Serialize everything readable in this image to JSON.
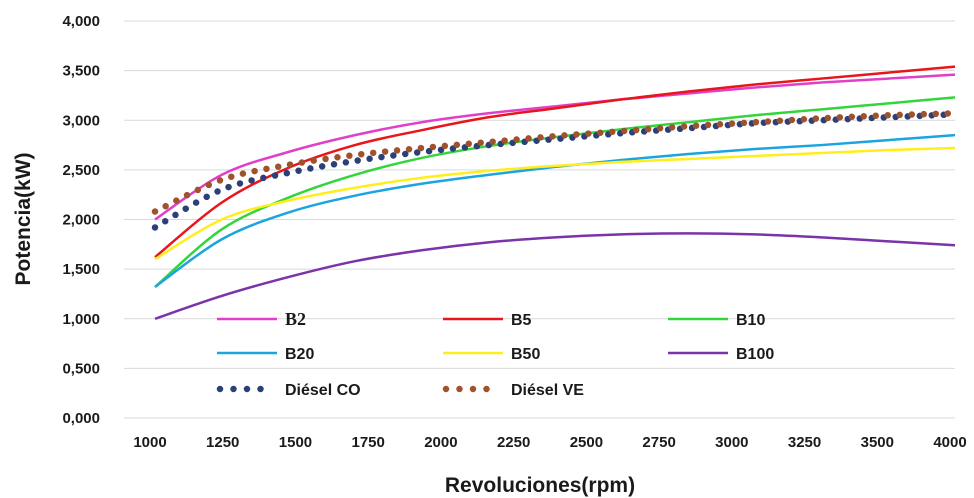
{
  "chart_data": {
    "type": "line",
    "xlabel": "Revoluciones(rpm)",
    "ylabel": "Potencia(kW)",
    "xlim": [
      1000,
      4000
    ],
    "ylim": [
      0,
      4
    ],
    "x_ticks": [
      "1000",
      "1250",
      "1500",
      "1750",
      "2000",
      "2250",
      "2500",
      "2750",
      "3000",
      "3250",
      "3500",
      "4000"
    ],
    "y_ticks": [
      "0,000",
      "0,500",
      "1,000",
      "1,500",
      "2,000",
      "2,500",
      "3,000",
      "3,500",
      "4,000"
    ],
    "grid": "horizontal",
    "legend_position": "bottom-left inside",
    "x": [
      1000,
      1250,
      1500,
      1750,
      2000,
      2250,
      2500,
      2750,
      3000,
      3250,
      3500,
      3750,
      4000
    ],
    "series": [
      {
        "name": "B2",
        "color": "#e040c8",
        "style": "solid",
        "values": [
          2.0,
          2.45,
          2.68,
          2.85,
          2.98,
          3.07,
          3.14,
          3.21,
          3.27,
          3.33,
          3.38,
          3.42,
          3.46
        ]
      },
      {
        "name": "B5",
        "color": "#e8151b",
        "style": "solid",
        "values": [
          1.62,
          2.17,
          2.52,
          2.75,
          2.9,
          3.03,
          3.12,
          3.21,
          3.29,
          3.36,
          3.42,
          3.48,
          3.54
        ]
      },
      {
        "name": "B10",
        "color": "#33d63a",
        "style": "solid",
        "values": [
          1.32,
          1.9,
          2.22,
          2.45,
          2.62,
          2.74,
          2.83,
          2.91,
          2.98,
          3.05,
          3.11,
          3.17,
          3.23
        ]
      },
      {
        "name": "B20",
        "color": "#1ca4e0",
        "style": "solid",
        "values": [
          1.32,
          1.8,
          2.07,
          2.24,
          2.36,
          2.45,
          2.53,
          2.6,
          2.66,
          2.71,
          2.75,
          2.8,
          2.85
        ]
      },
      {
        "name": "B50",
        "color": "#ffee1a",
        "style": "solid",
        "values": [
          1.6,
          2.0,
          2.19,
          2.32,
          2.42,
          2.49,
          2.54,
          2.58,
          2.61,
          2.64,
          2.67,
          2.7,
          2.72
        ]
      },
      {
        "name": "B100",
        "color": "#7a33a8",
        "style": "solid",
        "values": [
          1.0,
          1.23,
          1.42,
          1.58,
          1.69,
          1.77,
          1.82,
          1.85,
          1.86,
          1.85,
          1.82,
          1.78,
          1.74
        ]
      },
      {
        "name": "Diésel CO",
        "color": "#2b3f78",
        "style": "dotted",
        "values": [
          1.92,
          2.3,
          2.47,
          2.59,
          2.68,
          2.75,
          2.81,
          2.87,
          2.92,
          2.97,
          3.0,
          3.03,
          3.06
        ]
      },
      {
        "name": "Diésel VE",
        "color": "#a0522d",
        "style": "dotted",
        "values": [
          2.08,
          2.4,
          2.55,
          2.65,
          2.72,
          2.78,
          2.84,
          2.89,
          2.94,
          2.98,
          3.02,
          3.05,
          3.07
        ]
      }
    ]
  }
}
